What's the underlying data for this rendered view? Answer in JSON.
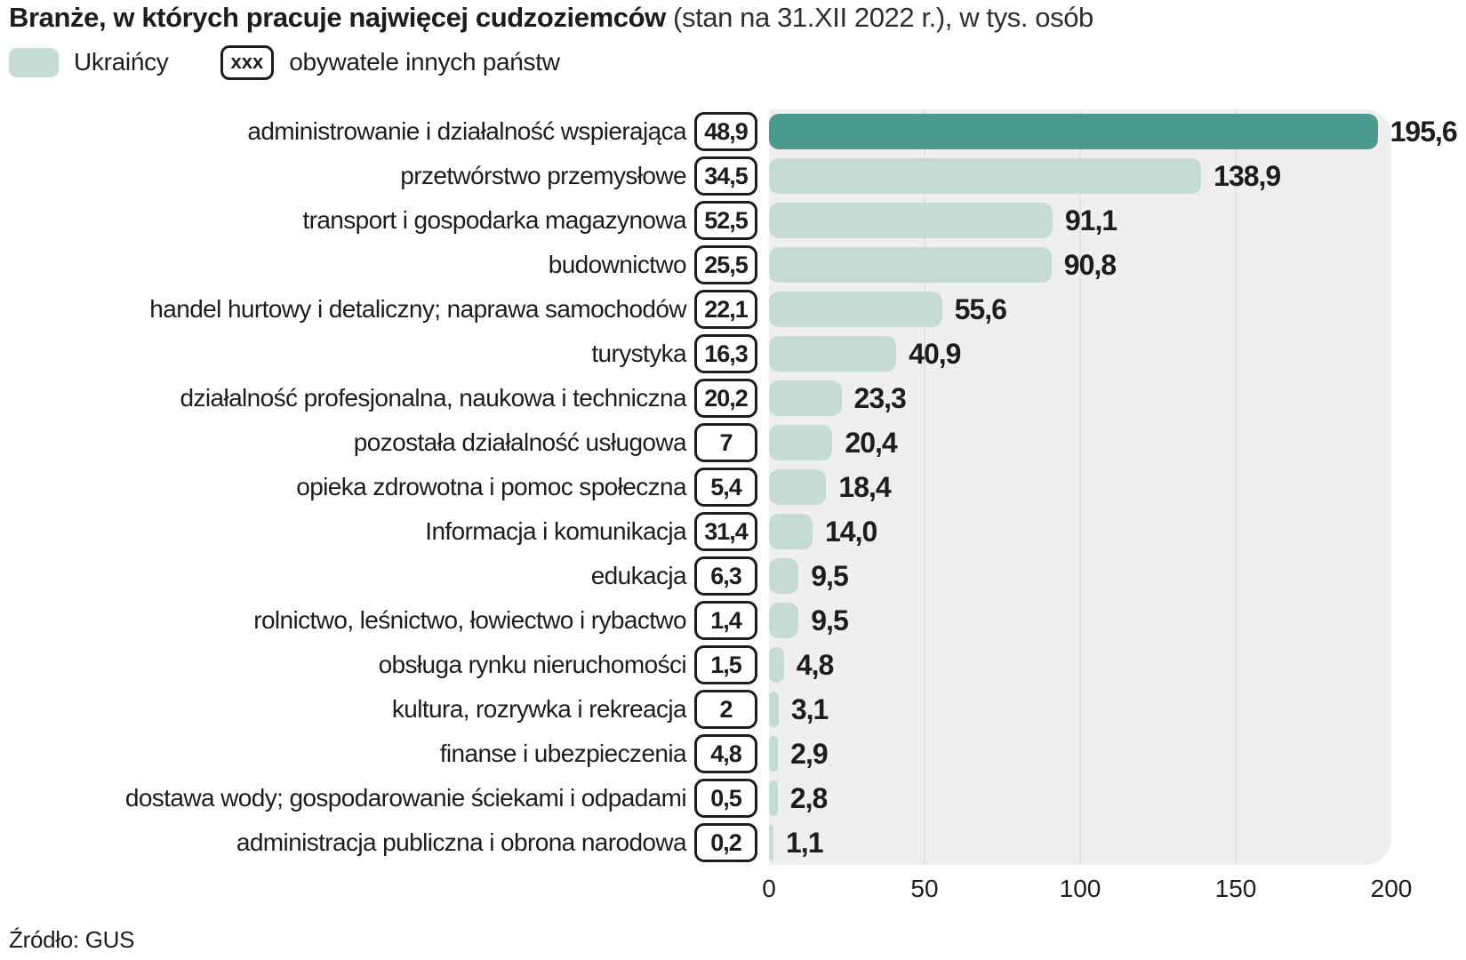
{
  "title": {
    "bold": "Branże, w których pracuje najwięcej cudzoziemców",
    "suffix": " (stan na 31.XII 2022 r.), w tys. osób"
  },
  "legend": {
    "ukrainians_label": "Ukraińcy",
    "others_symbol": "xxx",
    "others_label": "obywatele innych państw"
  },
  "source": "Źródło: GUS",
  "colors": {
    "ukraine_bar": "#c5dcd4",
    "highlight_bar": "#4a9b8e",
    "plot_bg": "#efefed",
    "grid": "#e2e2e0",
    "text": "#1d1d1b"
  },
  "chart_data": {
    "type": "bar",
    "orientation": "horizontal",
    "title": "Branże, w których pracuje najwięcej cudzoziemców (stan na 31.XII 2022 r.), w tys. osób",
    "xlabel": "tys. osób",
    "xlim": [
      0,
      200
    ],
    "x_ticks": [
      "0",
      "50",
      "100",
      "150",
      "200"
    ],
    "grid": true,
    "legend_position": "top",
    "highlight_index": 0,
    "categories": [
      "administrowanie i działalność wspierająca",
      "przetwórstwo przemysłowe",
      "transport i gospodarka magazynowa",
      "budownictwo",
      "handel hurtowy i detaliczny; naprawa samochodów",
      "turystyka",
      "działalność profesjonalna, naukowa i techniczna",
      "pozostała działalność usługowa",
      "opieka zdrowotna i pomoc społeczna",
      "Informacja i komunikacja",
      "edukacja",
      "rolnictwo, leśnictwo, łowiectwo i rybactwo",
      "obsługa rynku nieruchomości",
      "kultura, rozrywka i rekreacja",
      "finanse i ubezpieczenia",
      "dostawa wody; gospodarowanie ściekami i odpadami",
      "administracja publiczna i obrona narodowa"
    ],
    "series": [
      {
        "name": "Ukraińcy",
        "values": [
          195.6,
          138.9,
          91.1,
          90.8,
          55.6,
          40.9,
          23.3,
          20.4,
          18.4,
          14.0,
          9.5,
          9.5,
          4.8,
          3.1,
          2.9,
          2.8,
          1.1
        ],
        "labels": [
          "195,6",
          "138,9",
          "91,1",
          "90,8",
          "55,6",
          "40,9",
          "23,3",
          "20,4",
          "18,4",
          "14,0",
          "9,5",
          "9,5",
          "4,8",
          "3,1",
          "2,9",
          "2,8",
          "1,1"
        ]
      },
      {
        "name": "obywatele innych państw",
        "values": [
          48.9,
          34.5,
          52.5,
          25.5,
          22.1,
          16.3,
          20.2,
          7,
          5.4,
          31.4,
          6.3,
          1.4,
          1.5,
          2,
          4.8,
          0.5,
          0.2
        ],
        "labels": [
          "48,9",
          "34,5",
          "52,5",
          "25,5",
          "22,1",
          "16,3",
          "20,2",
          "7",
          "5,4",
          "31,4",
          "6,3",
          "1,4",
          "1,5",
          "2",
          "4,8",
          "0,5",
          "0,2"
        ]
      }
    ]
  }
}
